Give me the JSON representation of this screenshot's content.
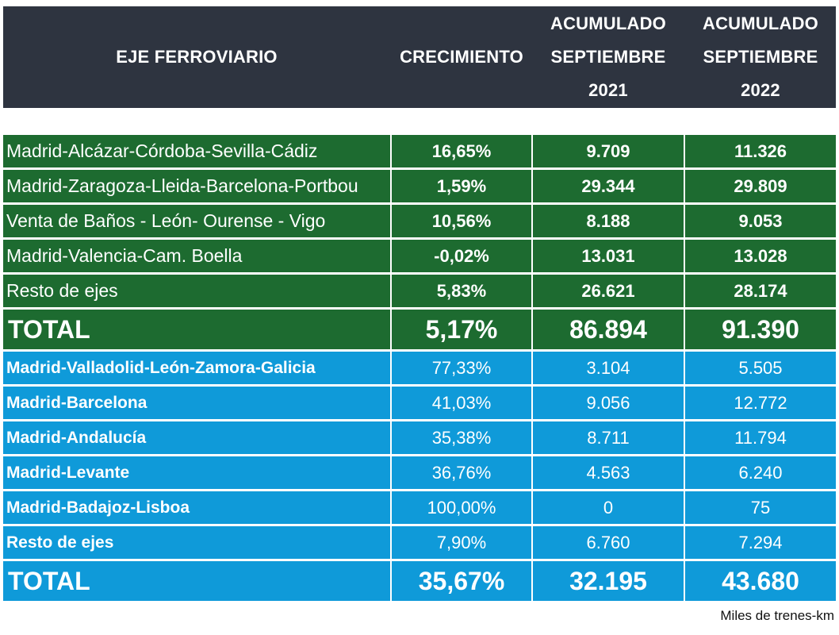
{
  "header": {
    "axis_label": "EJE FERROVIARIO",
    "growth_label": "CRECIMIENTO",
    "col2021": [
      "ACUMULADO",
      "SEPTIEMBRE",
      "2021"
    ],
    "col2022": [
      "ACUMULADO",
      "SEPTIEMBRE",
      "2022"
    ]
  },
  "green_group": {
    "rows": [
      {
        "name": "Madrid-Alcázar-Córdoba-Sevilla-Cádiz",
        "growth": "16,65%",
        "y2021": "9.709",
        "y2022": "11.326"
      },
      {
        "name": "Madrid-Zaragoza-Lleida-Barcelona-Portbou",
        "growth": "1,59%",
        "y2021": "29.344",
        "y2022": "29.809"
      },
      {
        "name": "Venta de Baños - León- Ourense - Vigo",
        "growth": "10,56%",
        "y2021": "8.188",
        "y2022": "9.053"
      },
      {
        "name": "Madrid-Valencia-Cam. Boella",
        "growth": "-0,02%",
        "y2021": "13.031",
        "y2022": "13.028"
      },
      {
        "name": "Resto de ejes",
        "growth": "5,83%",
        "y2021": "26.621",
        "y2022": "28.174"
      }
    ],
    "total": {
      "name": "TOTAL",
      "growth": "5,17%",
      "y2021": "86.894",
      "y2022": "91.390"
    }
  },
  "blue_group": {
    "rows": [
      {
        "name": "Madrid-Valladolid-León-Zamora-Galicia",
        "growth": "77,33%",
        "y2021": "3.104",
        "y2022": "5.505"
      },
      {
        "name": "Madrid-Barcelona",
        "growth": "41,03%",
        "y2021": "9.056",
        "y2022": "12.772"
      },
      {
        "name": "Madrid-Andalucía",
        "growth": "35,38%",
        "y2021": "8.711",
        "y2022": "11.794"
      },
      {
        "name": "Madrid-Levante",
        "growth": "36,76%",
        "y2021": "4.563",
        "y2022": "6.240"
      },
      {
        "name": "Madrid-Badajoz-Lisboa",
        "growth": "100,00%",
        "y2021": "0",
        "y2022": "75"
      },
      {
        "name": "Resto de ejes",
        "growth": "7,90%",
        "y2021": "6.760",
        "y2022": "7.294"
      }
    ],
    "total": {
      "name": "TOTAL",
      "growth": "35,67%",
      "y2021": "32.195",
      "y2022": "43.680"
    }
  },
  "colors": {
    "header_bg": "#2e3440",
    "green": "#1d6b30",
    "blue": "#0f9ad9"
  },
  "footnote": "Miles de trenes-km"
}
